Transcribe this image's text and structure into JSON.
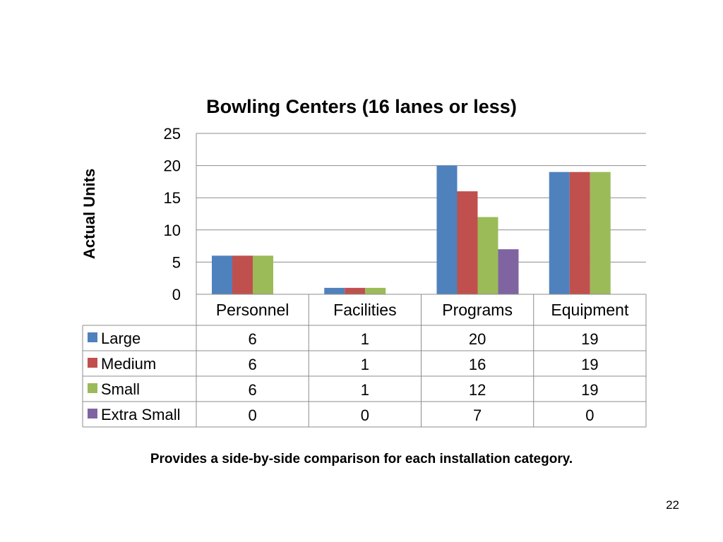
{
  "slide": {
    "caption": "Provides a side-by-side comparison for each installation category.",
    "page_number": "22"
  },
  "chart_data": {
    "type": "bar",
    "title": "Bowling Centers (16 lanes or less)",
    "xlabel": "",
    "ylabel": "Actual Units",
    "ylim": [
      0,
      25
    ],
    "yticks": [
      0,
      5,
      10,
      15,
      20,
      25
    ],
    "grid": true,
    "legend": "data-table",
    "categories": [
      "Personnel",
      "Facilities",
      "Programs",
      "Equipment"
    ],
    "series": [
      {
        "name": "Large",
        "color": "#4F81BD",
        "values": [
          6,
          1,
          20,
          19
        ]
      },
      {
        "name": "Medium",
        "color": "#C0504D",
        "values": [
          6,
          1,
          16,
          19
        ]
      },
      {
        "name": "Small",
        "color": "#9BBB59",
        "values": [
          6,
          1,
          12,
          19
        ]
      },
      {
        "name": "Extra Small",
        "color": "#8064A2",
        "values": [
          0,
          0,
          7,
          0
        ]
      }
    ]
  }
}
